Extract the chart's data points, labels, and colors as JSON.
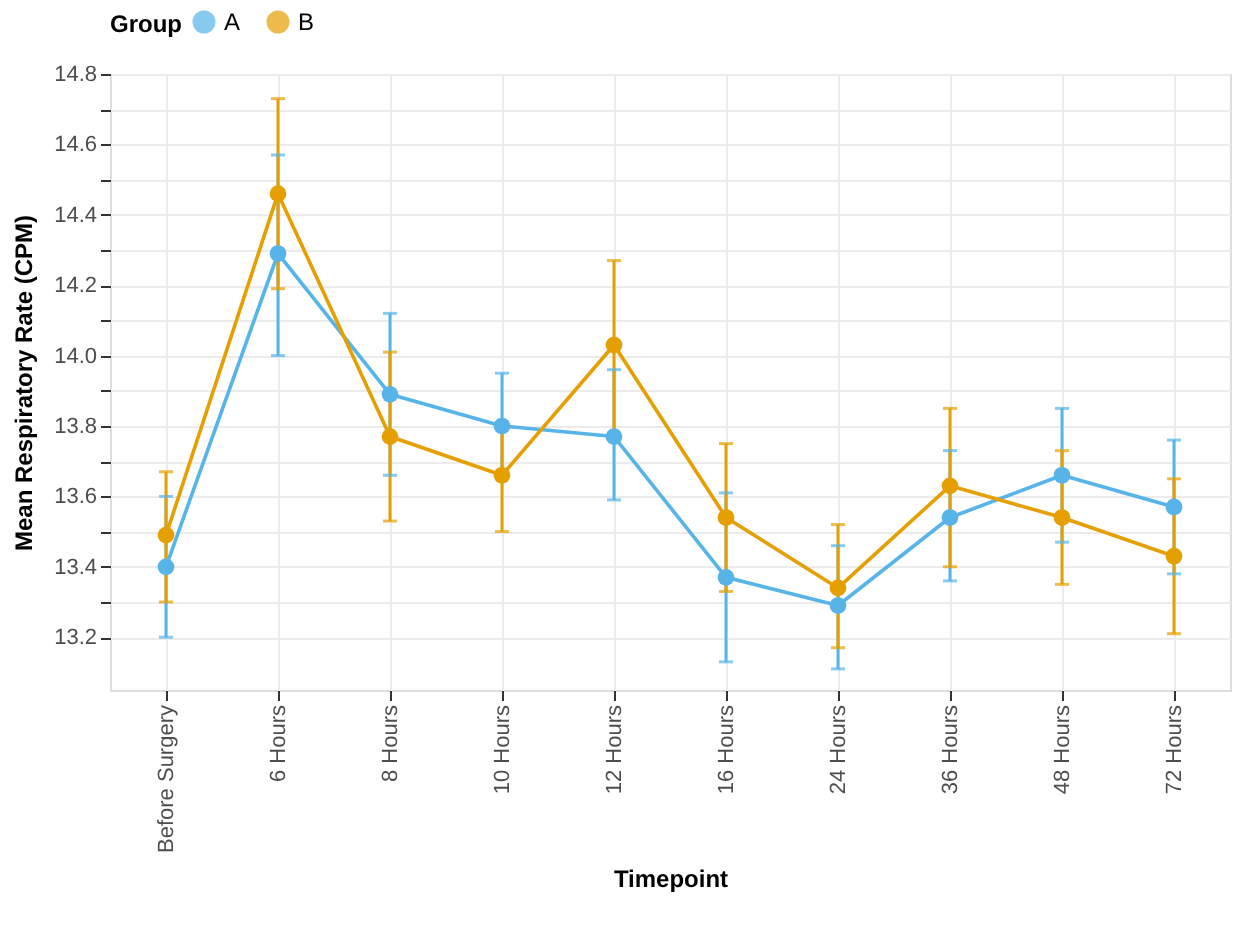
{
  "chart_data": {
    "type": "line",
    "xlabel": "Timepoint",
    "ylabel": "Mean Respiratory Rate (CPM)",
    "legend_title": "Group",
    "legend": "top",
    "grid": true,
    "marker": "circle",
    "line_style": "solid",
    "categories": [
      "Before Surgery",
      "6 Hours",
      "8 Hours",
      "10 Hours",
      "12 Hours",
      "16 Hours",
      "24 Hours",
      "36 Hours",
      "48 Hours",
      "72 Hours"
    ],
    "ylim": [
      13.05,
      14.8
    ],
    "yticks": [
      13.2,
      {
        "value": 13.3,
        "label": null
      },
      13.4,
      {
        "value": 13.5,
        "label": null
      },
      13.6,
      {
        "value": 13.7,
        "label": null
      },
      13.8,
      {
        "value": 13.9,
        "label": null
      },
      {
        "value": 14.0,
        "label": "14.0"
      },
      {
        "value": 14.1,
        "label": null
      },
      14.2,
      {
        "value": 14.3,
        "label": null
      },
      14.4,
      {
        "value": 14.5,
        "label": null
      },
      14.6,
      {
        "value": 14.7,
        "label": null
      },
      14.8
    ],
    "series": [
      {
        "name": "A",
        "color": "#56b4e9",
        "values": [
          13.4,
          14.29,
          13.89,
          13.8,
          13.77,
          13.37,
          13.29,
          13.54,
          13.66,
          13.57
        ],
        "errors": [
          [
            13.2,
            13.6
          ],
          [
            14.0,
            14.57
          ],
          [
            13.66,
            14.12
          ],
          [
            13.65,
            13.95
          ],
          [
            13.59,
            13.96
          ],
          [
            13.13,
            13.61
          ],
          [
            13.11,
            13.46
          ],
          [
            13.36,
            13.73
          ],
          [
            13.47,
            13.85
          ],
          [
            13.38,
            13.76
          ]
        ]
      },
      {
        "name": "B",
        "color": "#e69f00",
        "values": [
          13.49,
          14.46,
          13.77,
          13.66,
          14.03,
          13.54,
          13.34,
          13.63,
          13.54,
          13.43
        ],
        "errors": [
          [
            13.3,
            13.67
          ],
          [
            14.19,
            14.73
          ],
          [
            13.53,
            14.01
          ],
          [
            13.5,
            13.81
          ],
          [
            13.78,
            14.27
          ],
          [
            13.33,
            13.75
          ],
          [
            13.17,
            13.52
          ],
          [
            13.4,
            13.85
          ],
          [
            13.35,
            13.73
          ],
          [
            13.21,
            13.65
          ]
        ]
      }
    ]
  }
}
